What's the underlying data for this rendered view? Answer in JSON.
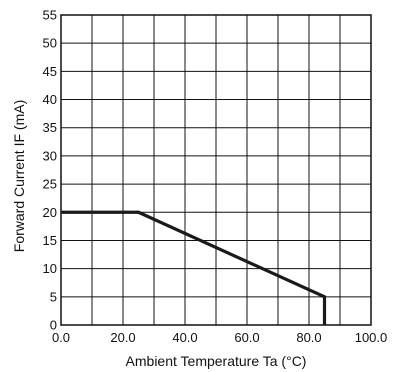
{
  "chart_data": {
    "type": "line",
    "xlabel": "Ambient Temperature Ta (°C)",
    "ylabel": "Forward Current IF (mA)",
    "xlim": [
      0,
      100
    ],
    "ylim": [
      0,
      55
    ],
    "xticks": [
      0,
      10,
      20,
      30,
      40,
      50,
      60,
      70,
      80,
      90,
      100
    ],
    "xtick_labels": [
      "0.0",
      "",
      "20.0",
      "",
      "40.0",
      "",
      "60.0",
      "",
      "80.0",
      "",
      "100.0"
    ],
    "yticks": [
      0,
      5,
      10,
      15,
      20,
      25,
      30,
      35,
      40,
      45,
      50,
      55
    ],
    "ytick_labels": [
      "0",
      "5",
      "10",
      "15",
      "20",
      "25",
      "30",
      "35",
      "40",
      "45",
      "50",
      "55"
    ],
    "grid": true,
    "legend": "none",
    "series": [
      {
        "x": [
          0,
          25,
          85,
          85
        ],
        "y": [
          20,
          20,
          5,
          0
        ]
      }
    ],
    "colors": {
      "line": "#1a1a1a",
      "grid": "#111111",
      "background": "#ffffff"
    }
  }
}
